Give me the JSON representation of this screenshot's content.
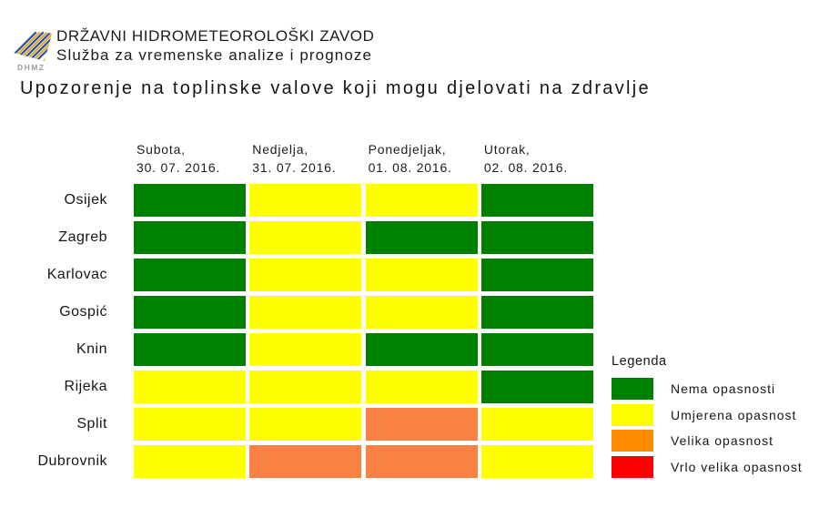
{
  "header": {
    "org_name": "DRŽAVNI HIDROMETEOROLOŠKI ZAVOD",
    "org_unit": "Služba za vremenske analize i prognoze",
    "logo_text": "DHMZ"
  },
  "title": "Upozorenje na toplinske valove koji mogu djelovati na zdravlje",
  "chart_data": {
    "type": "heatmap",
    "title": "Upozorenje na toplinske valove koji mogu djelovati na zdravlje",
    "columns": [
      {
        "day": "Subota,",
        "date": "30. 07. 2016."
      },
      {
        "day": "Nedjelja,",
        "date": "31. 07. 2016."
      },
      {
        "day": "Ponedjeljak,",
        "date": "01. 08. 2016."
      },
      {
        "day": "Utorak,",
        "date": "02. 08. 2016."
      }
    ],
    "cities": [
      "Osijek",
      "Zagreb",
      "Karlovac",
      "Gospić",
      "Knin",
      "Rijeka",
      "Split",
      "Dubrovnik"
    ],
    "values": [
      [
        "none",
        "moderate",
        "moderate",
        "none"
      ],
      [
        "none",
        "moderate",
        "none",
        "none"
      ],
      [
        "none",
        "moderate",
        "moderate",
        "none"
      ],
      [
        "none",
        "moderate",
        "moderate",
        "none"
      ],
      [
        "none",
        "moderate",
        "none",
        "none"
      ],
      [
        "moderate",
        "moderate",
        "moderate",
        "none"
      ],
      [
        "moderate",
        "moderate",
        "high",
        "moderate"
      ],
      [
        "moderate",
        "high",
        "high",
        "moderate"
      ]
    ],
    "level_labels": {
      "none": "Nema opasnosti",
      "moderate": "Umjerena opasnost",
      "high": "Velika opasnost",
      "very_high": "Vrlo velika opasnost"
    },
    "cell_colors": {
      "none": "#008000",
      "moderate": "#ffff00",
      "high": "#fa8142",
      "very_high": "#ff0000"
    }
  },
  "legend": {
    "title": "Legenda",
    "items": [
      {
        "label": "Nema opasnosti",
        "color": "#008000"
      },
      {
        "label": "Umjerena opasnost",
        "color": "#ffff00"
      },
      {
        "label": "Velika opasnost",
        "color": "#ff8c00"
      },
      {
        "label": "Vrlo velika opasnost",
        "color": "#ff0000"
      }
    ]
  },
  "logo_colors": {
    "blue": "#3a55a5",
    "gold": "#ddb23a",
    "text_gray": "#9a9a9a"
  }
}
